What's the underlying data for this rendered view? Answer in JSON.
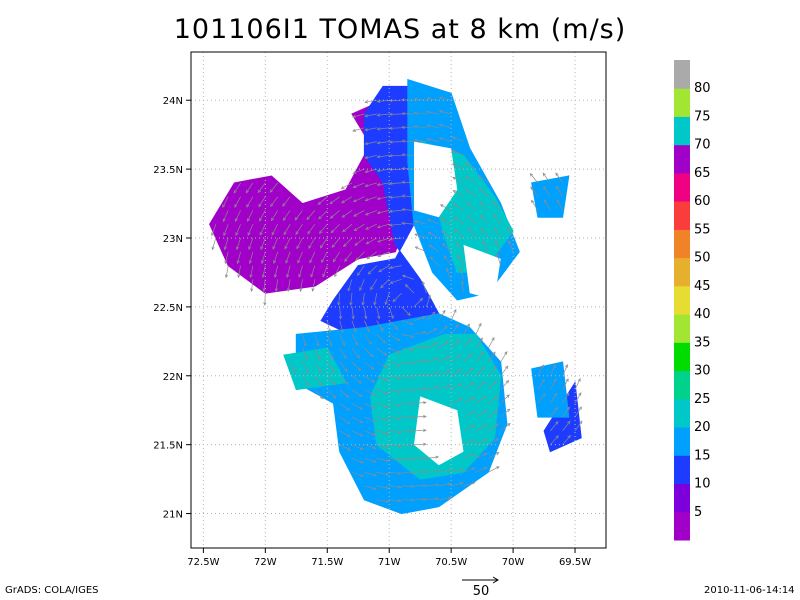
{
  "chart_data": {
    "type": "heatmap",
    "title": "101106I1 TOMAS at 8 km (m/s)",
    "xlabel": "",
    "ylabel": "",
    "xlim": [
      -72.6,
      -69.25
    ],
    "ylim": [
      20.75,
      24.35
    ],
    "x_ticks": [
      {
        "value": -72.5,
        "label": "72.5W"
      },
      {
        "value": -72.0,
        "label": "72W"
      },
      {
        "value": -71.5,
        "label": "71.5W"
      },
      {
        "value": -71.0,
        "label": "71W"
      },
      {
        "value": -70.5,
        "label": "70.5W"
      },
      {
        "value": -70.0,
        "label": "70W"
      },
      {
        "value": -69.5,
        "label": "69.5W"
      }
    ],
    "y_ticks": [
      {
        "value": 21.0,
        "label": "21N"
      },
      {
        "value": 21.5,
        "label": "21.5N"
      },
      {
        "value": 22.0,
        "label": "22N"
      },
      {
        "value": 22.5,
        "label": "22.5N"
      },
      {
        "value": 23.0,
        "label": "23N"
      },
      {
        "value": 23.5,
        "label": "23.5N"
      },
      {
        "value": 24.0,
        "label": "24N"
      }
    ],
    "grid": true,
    "colorbar": {
      "labels": [
        "5",
        "10",
        "15",
        "20",
        "25",
        "30",
        "35",
        "40",
        "45",
        "50",
        "55",
        "60",
        "65",
        "70",
        "75",
        "80"
      ],
      "colors": [
        "#a000c8",
        "#7d00dc",
        "#1e3cff",
        "#00a0ff",
        "#00c8c8",
        "#00d28c",
        "#00dc00",
        "#a0e632",
        "#e6dc32",
        "#e6af2d",
        "#f08228",
        "#fa3c3c",
        "#f00082",
        "#a000c8",
        "#00c8c8",
        "#a0e632",
        "#aaaaaa"
      ]
    },
    "regions": [
      {
        "value": 3,
        "lonlat": [
          [
            -72.45,
            23.1
          ],
          [
            -72.25,
            23.4
          ],
          [
            -71.95,
            23.45
          ],
          [
            -71.7,
            23.25
          ],
          [
            -71.35,
            23.35
          ],
          [
            -71.2,
            23.6
          ],
          [
            -70.95,
            23.55
          ],
          [
            -70.85,
            23.15
          ],
          [
            -70.95,
            22.9
          ],
          [
            -71.25,
            22.85
          ],
          [
            -71.6,
            22.65
          ],
          [
            -72.0,
            22.6
          ],
          [
            -72.3,
            22.8
          ]
        ]
      },
      {
        "value": 3,
        "lonlat": [
          [
            -71.3,
            23.9
          ],
          [
            -71.05,
            24.0
          ],
          [
            -70.9,
            23.85
          ],
          [
            -71.2,
            23.75
          ]
        ]
      },
      {
        "value": 12,
        "lonlat": [
          [
            -71.05,
            24.1
          ],
          [
            -70.85,
            24.1
          ],
          [
            -70.85,
            23.55
          ],
          [
            -70.8,
            23.1
          ],
          [
            -70.95,
            22.85
          ],
          [
            -71.25,
            22.8
          ],
          [
            -71.45,
            22.55
          ],
          [
            -71.55,
            22.4
          ],
          [
            -71.2,
            22.25
          ],
          [
            -70.8,
            22.3
          ],
          [
            -70.6,
            22.45
          ],
          [
            -70.75,
            22.7
          ],
          [
            -70.95,
            22.95
          ],
          [
            -71.05,
            23.4
          ],
          [
            -71.2,
            23.6
          ],
          [
            -71.2,
            23.9
          ]
        ]
      },
      {
        "value": 12,
        "lonlat": [
          [
            -69.75,
            21.6
          ],
          [
            -69.5,
            21.95
          ],
          [
            -69.45,
            21.55
          ],
          [
            -69.7,
            21.45
          ]
        ]
      },
      {
        "value": 19,
        "lonlat": [
          [
            -71.75,
            22.3
          ],
          [
            -71.2,
            22.35
          ],
          [
            -70.6,
            22.45
          ],
          [
            -70.35,
            22.35
          ],
          [
            -70.1,
            22.1
          ],
          [
            -70.05,
            21.65
          ],
          [
            -70.2,
            21.3
          ],
          [
            -70.6,
            21.05
          ],
          [
            -70.9,
            21.0
          ],
          [
            -71.2,
            21.1
          ],
          [
            -71.4,
            21.45
          ],
          [
            -71.45,
            21.8
          ],
          [
            -71.75,
            21.95
          ]
        ]
      },
      {
        "value": 19,
        "lonlat": [
          [
            -70.85,
            24.15
          ],
          [
            -70.5,
            24.05
          ],
          [
            -70.35,
            23.65
          ],
          [
            -70.1,
            23.25
          ],
          [
            -69.95,
            22.9
          ],
          [
            -70.2,
            22.6
          ],
          [
            -70.45,
            22.55
          ],
          [
            -70.65,
            22.75
          ],
          [
            -70.8,
            23.1
          ],
          [
            -70.85,
            23.55
          ]
        ]
      },
      {
        "value": 19,
        "lonlat": [
          [
            -69.85,
            23.4
          ],
          [
            -69.55,
            23.45
          ],
          [
            -69.6,
            23.15
          ],
          [
            -69.8,
            23.15
          ]
        ]
      },
      {
        "value": 19,
        "lonlat": [
          [
            -69.85,
            22.05
          ],
          [
            -69.6,
            22.1
          ],
          [
            -69.55,
            21.7
          ],
          [
            -69.8,
            21.7
          ]
        ]
      },
      {
        "value": 24,
        "lonlat": [
          [
            -71.0,
            22.15
          ],
          [
            -70.55,
            22.3
          ],
          [
            -70.3,
            22.3
          ],
          [
            -70.1,
            22.0
          ],
          [
            -70.15,
            21.55
          ],
          [
            -70.4,
            21.3
          ],
          [
            -70.75,
            21.25
          ],
          [
            -71.1,
            21.5
          ],
          [
            -71.15,
            21.85
          ]
        ]
      },
      {
        "value": 24,
        "lonlat": [
          [
            -70.75,
            23.7
          ],
          [
            -70.4,
            23.6
          ],
          [
            -70.15,
            23.3
          ],
          [
            -70.0,
            23.05
          ],
          [
            -70.25,
            22.75
          ],
          [
            -70.45,
            22.75
          ],
          [
            -70.55,
            23.0
          ],
          [
            -70.65,
            23.35
          ]
        ]
      },
      {
        "value": 24,
        "lonlat": [
          [
            -71.85,
            22.15
          ],
          [
            -71.5,
            22.2
          ],
          [
            -71.35,
            21.95
          ],
          [
            -71.75,
            21.9
          ]
        ]
      }
    ],
    "holes": [
      {
        "lonlat": [
          [
            -70.8,
            23.7
          ],
          [
            -70.5,
            23.65
          ],
          [
            -70.45,
            23.35
          ],
          [
            -70.6,
            23.15
          ],
          [
            -70.8,
            23.2
          ]
        ]
      },
      {
        "lonlat": [
          [
            -70.75,
            21.85
          ],
          [
            -70.45,
            21.75
          ],
          [
            -70.4,
            21.45
          ],
          [
            -70.6,
            21.35
          ],
          [
            -70.8,
            21.5
          ]
        ]
      },
      {
        "lonlat": [
          [
            -70.4,
            22.95
          ],
          [
            -70.1,
            22.85
          ],
          [
            -70.15,
            22.55
          ],
          [
            -70.35,
            22.6
          ]
        ]
      }
    ],
    "vectors": {
      "reference_speed": 50,
      "reference_label": "50"
    }
  },
  "footer": {
    "left": "GrADS: COLA/IGES",
    "right": "2010-11-06-14:14"
  }
}
